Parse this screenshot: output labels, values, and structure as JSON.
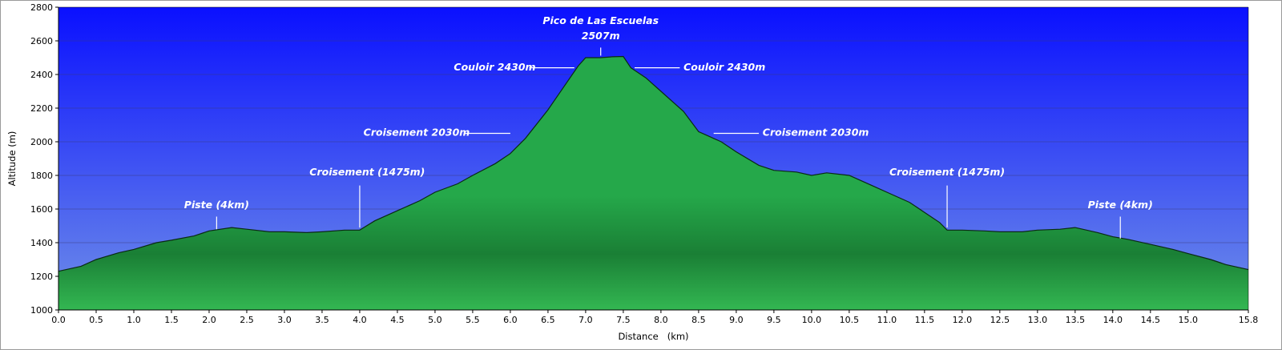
{
  "chart_data": {
    "type": "area",
    "xlabel": "Distance   (km)",
    "ylabel": "Altitude (m)",
    "xlim": [
      0.0,
      15.8
    ],
    "ylim": [
      1000,
      2800
    ],
    "grid": true,
    "x_ticks": [
      "0.0",
      "0.5",
      "1.0",
      "1.5",
      "2.0",
      "2.5",
      "3.0",
      "3.5",
      "4.0",
      "4.5",
      "5.0",
      "5.5",
      "6.0",
      "6.5",
      "7.0",
      "7.5",
      "8.0",
      "8.5",
      "9.0",
      "9.5",
      "10.0",
      "10.5",
      "11.0",
      "11.5",
      "12.0",
      "12.5",
      "13.0",
      "13.5",
      "14.0",
      "14.5",
      "15.0",
      "15.8"
    ],
    "y_ticks": [
      "1000",
      "1200",
      "1400",
      "1600",
      "1800",
      "2000",
      "2200",
      "2400",
      "2600",
      "2800"
    ],
    "colors": {
      "sky_top": "#0a10ff",
      "sky_bottom": "#6f8fe8",
      "fill_top": "#25a84a",
      "fill_mid": "#1a7f35",
      "fill_bottom": "#33b752",
      "outline": "#0a2a14",
      "grid": "#3a3a7a",
      "annotation": "#ffffff"
    },
    "series": [
      {
        "x": [
          0.0,
          0.3,
          0.5,
          0.8,
          1.0,
          1.3,
          1.5,
          1.8,
          2.0,
          2.3,
          2.5,
          2.8,
          3.0,
          3.3,
          3.5,
          3.8,
          4.0,
          4.2,
          4.5,
          4.8,
          5.0,
          5.3,
          5.5,
          5.8,
          6.0,
          6.2,
          6.5,
          6.7,
          6.9,
          7.0,
          7.2,
          7.35,
          7.5,
          7.6,
          7.8,
          8.0,
          8.3,
          8.5,
          8.6,
          8.8,
          9.0,
          9.3,
          9.5,
          9.8,
          10.0,
          10.2,
          10.5,
          10.8,
          11.0,
          11.3,
          11.5,
          11.7,
          11.8,
          12.0,
          12.3,
          12.5,
          12.8,
          13.0,
          13.3,
          13.5,
          13.8,
          14.0,
          14.2,
          14.5,
          14.8,
          15.0,
          15.3,
          15.5,
          15.8
        ],
        "y": [
          1230,
          1260,
          1300,
          1340,
          1360,
          1400,
          1415,
          1440,
          1470,
          1490,
          1480,
          1465,
          1465,
          1460,
          1465,
          1475,
          1475,
          1530,
          1590,
          1650,
          1700,
          1750,
          1800,
          1870,
          1930,
          2020,
          2190,
          2320,
          2450,
          2500,
          2500,
          2505,
          2507,
          2440,
          2380,
          2300,
          2180,
          2060,
          2040,
          2000,
          1940,
          1860,
          1830,
          1820,
          1800,
          1815,
          1800,
          1740,
          1700,
          1640,
          1580,
          1520,
          1475,
          1475,
          1470,
          1465,
          1465,
          1475,
          1480,
          1490,
          1460,
          1435,
          1420,
          1390,
          1360,
          1335,
          1300,
          1270,
          1240
        ]
      }
    ],
    "annotations": [
      {
        "text": "Pico de Las Escuelas",
        "x": 7.2,
        "y": 2700,
        "anchor": "middle",
        "leader_x": [
          7.2,
          7.2
        ],
        "leader_y": [
          2560,
          2512
        ]
      },
      {
        "text": "2507m",
        "x": 7.2,
        "y": 2610,
        "anchor": "middle"
      },
      {
        "text": "Couloir 2430m",
        "x": 5.25,
        "y": 2425,
        "anchor": "start",
        "leader_x": [
          6.25,
          6.85
        ],
        "leader_y": [
          2440,
          2440
        ]
      },
      {
        "text": "Couloir 2430m",
        "x": 8.3,
        "y": 2425,
        "anchor": "start",
        "leader_x": [
          7.65,
          8.25
        ],
        "leader_y": [
          2440,
          2440
        ]
      },
      {
        "text": "Croisement 2030m",
        "x": 4.05,
        "y": 2035,
        "anchor": "start",
        "leader_x": [
          5.4,
          6.0
        ],
        "leader_y": [
          2050,
          2050
        ]
      },
      {
        "text": "Croisement 2030m",
        "x": 9.35,
        "y": 2035,
        "anchor": "start",
        "leader_x": [
          8.7,
          9.3
        ],
        "leader_y": [
          2050,
          2050
        ]
      },
      {
        "text": "Croisement (1475m)",
        "x": 4.1,
        "y": 1800,
        "anchor": "middle",
        "leader_x": [
          4.0,
          4.0
        ],
        "leader_y": [
          1740,
          1490
        ]
      },
      {
        "text": "Croisement (1475m)",
        "x": 11.8,
        "y": 1800,
        "anchor": "middle",
        "leader_x": [
          11.8,
          11.8
        ],
        "leader_y": [
          1740,
          1490
        ]
      },
      {
        "text": "Piste (4km)",
        "x": 2.1,
        "y": 1605,
        "anchor": "middle",
        "leader_x": [
          2.1,
          2.1
        ],
        "leader_y": [
          1555,
          1480
        ]
      },
      {
        "text": "Piste (4km)",
        "x": 14.1,
        "y": 1605,
        "anchor": "middle",
        "leader_x": [
          14.1,
          14.1
        ],
        "leader_y": [
          1555,
          1425
        ]
      }
    ]
  }
}
